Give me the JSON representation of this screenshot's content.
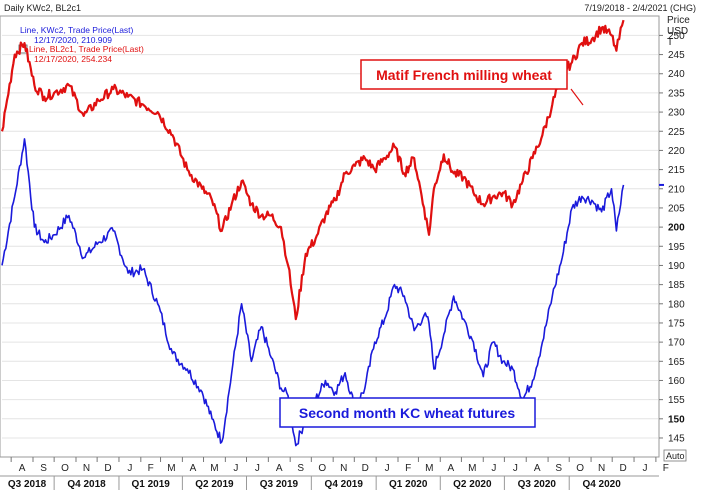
{
  "header": {
    "title": "Daily KWc2, BL2c1",
    "date_range": "7/19/2018 - 2/4/2021 (CHG)"
  },
  "legend": [
    {
      "line1": "Line, KWc2, Trade Price(Last)",
      "line2": "12/17/2020, 210.909",
      "color": "#1a1adb"
    },
    {
      "line1": "Line, BL2c1, Trade Price(Last)",
      "line2": "12/17/2020, 254.234",
      "color": "#e01010"
    }
  ],
  "axis_title": [
    "Price",
    "USD",
    "T"
  ],
  "auto_label": "Auto",
  "annotations": {
    "matif": "Matif French milling wheat",
    "kc": "Second month KC wheat futures"
  },
  "colors": {
    "kc": "#1a1adb",
    "matif": "#e01010",
    "grid": "#e4e4e4"
  },
  "chart_data": {
    "type": "line",
    "title": "Daily KWc2, BL2c1",
    "ylabel": "Price USD T",
    "ylim": [
      140,
      255
    ],
    "y_ticks": [
      145,
      150,
      155,
      160,
      165,
      170,
      175,
      180,
      185,
      190,
      195,
      200,
      205,
      210,
      215,
      220,
      225,
      230,
      235,
      240,
      245,
      250
    ],
    "x_months": [
      "A",
      "S",
      "O",
      "N",
      "D",
      "J",
      "F",
      "M",
      "A",
      "M",
      "J",
      "J",
      "A",
      "S",
      "O",
      "N",
      "D",
      "J",
      "F",
      "M",
      "A",
      "M",
      "J",
      "J",
      "A",
      "S",
      "O",
      "N",
      "D",
      "J",
      "F"
    ],
    "x_quarters": [
      "Q3 2018",
      "Q4 2018",
      "Q1 2019",
      "Q2 2019",
      "Q3 2019",
      "Q4 2019",
      "Q1 2020",
      "Q2 2020",
      "Q3 2020",
      "Q4 2020"
    ],
    "x": [
      "2018-07-19",
      "2018-08-06",
      "2018-08-20",
      "2018-09-03",
      "2018-09-17",
      "2018-10-01",
      "2018-10-22",
      "2018-11-12",
      "2018-12-03",
      "2018-12-24",
      "2019-01-14",
      "2019-02-04",
      "2019-02-25",
      "2019-03-18",
      "2019-04-08",
      "2019-04-29",
      "2019-05-13",
      "2019-05-27",
      "2019-06-10",
      "2019-06-24",
      "2019-07-08",
      "2019-07-22",
      "2019-08-05",
      "2019-08-19",
      "2019-08-29",
      "2019-09-09",
      "2019-09-23",
      "2019-10-07",
      "2019-10-21",
      "2019-11-04",
      "2019-11-18",
      "2019-12-02",
      "2019-12-16",
      "2019-12-30",
      "2020-01-13",
      "2020-01-27",
      "2020-02-10",
      "2020-02-24",
      "2020-03-09",
      "2020-03-16",
      "2020-03-23",
      "2020-04-06",
      "2020-04-20",
      "2020-05-04",
      "2020-05-18",
      "2020-06-01",
      "2020-06-15",
      "2020-06-29",
      "2020-07-13",
      "2020-07-27",
      "2020-08-10",
      "2020-08-24",
      "2020-09-07",
      "2020-09-21",
      "2020-10-05",
      "2020-10-19",
      "2020-11-02",
      "2020-11-16",
      "2020-11-30",
      "2020-12-07",
      "2020-12-17"
    ],
    "series": [
      {
        "name": "Line, KWc2, Trade Price(Last)",
        "values": [
          190,
          208,
          223,
          200,
          196,
          198,
          203,
          192,
          196,
          199,
          188,
          189,
          180,
          167,
          163,
          157,
          150,
          144,
          162,
          180,
          165,
          174,
          166,
          158,
          156,
          143,
          150,
          155,
          160,
          157,
          162,
          153,
          158,
          170,
          176,
          185,
          182,
          173,
          177,
          175,
          163,
          172,
          182,
          176,
          170,
          161,
          170,
          165,
          163,
          155,
          160,
          170,
          182,
          192,
          205,
          208,
          207,
          204,
          210,
          199,
          211
        ]
      },
      {
        "name": "Line, BL2c1, Trade Price(Last)",
        "values": [
          225,
          245,
          248,
          237,
          234,
          235,
          237,
          229,
          233,
          236,
          234,
          232,
          230,
          224,
          215,
          210,
          207,
          199,
          206,
          212,
          206,
          203,
          203,
          200,
          190,
          176,
          193,
          197,
          203,
          207,
          214,
          216,
          218,
          215,
          218,
          221,
          214,
          218,
          205,
          198,
          210,
          219,
          214,
          213,
          209,
          206,
          208,
          209,
          206,
          212,
          218,
          224,
          232,
          240,
          243,
          248,
          249,
          252,
          250,
          246,
          254
        ]
      }
    ]
  }
}
